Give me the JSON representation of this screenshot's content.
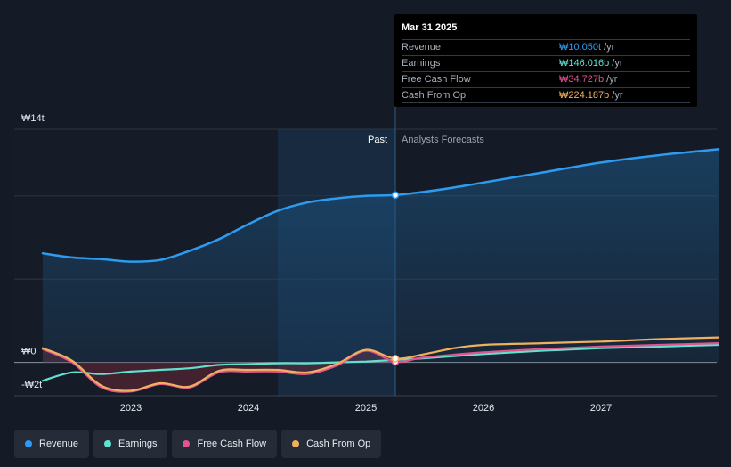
{
  "tooltip": {
    "date": "Mar 31 2025",
    "rows": [
      {
        "name": "Revenue",
        "value": "₩10.050t",
        "unit": "/yr",
        "color": "#2d9cf0"
      },
      {
        "name": "Earnings",
        "value": "₩146.016b",
        "unit": "/yr",
        "color": "#5fe3d0"
      },
      {
        "name": "Free Cash Flow",
        "value": "₩34.727b",
        "unit": "/yr",
        "color": "#e0558e"
      },
      {
        "name": "Cash From Op",
        "value": "₩224.187b",
        "unit": "/yr",
        "color": "#f0b15e"
      }
    ]
  },
  "regions": {
    "past_label": "Past",
    "forecast_label": "Analysts Forecasts"
  },
  "legend": [
    {
      "label": "Revenue",
      "color": "#2d9cf0"
    },
    {
      "label": "Earnings",
      "color": "#5fe3d0"
    },
    {
      "label": "Free Cash Flow",
      "color": "#e0558e"
    },
    {
      "label": "Cash From Op",
      "color": "#f0b15e"
    }
  ],
  "chart_data": {
    "type": "line",
    "title": "",
    "xlabel": "",
    "ylabel": "",
    "y_unit": "₩ trillion",
    "ylim": [
      -2,
      14
    ],
    "xlim": [
      2022.25,
      2028.0
    ],
    "y_ticks": [
      {
        "value": 14,
        "label": "₩14t"
      },
      {
        "value": 0,
        "label": "₩0"
      },
      {
        "value": -2,
        "label": "-₩2t"
      }
    ],
    "x_ticks": [
      {
        "value": 2023,
        "label": "2023"
      },
      {
        "value": 2024,
        "label": "2024"
      },
      {
        "value": 2025,
        "label": "2025"
      },
      {
        "value": 2026,
        "label": "2026"
      },
      {
        "value": 2027,
        "label": "2027"
      }
    ],
    "past_start": 2024.25,
    "forecast_start": 2025.25,
    "highlight_x": 2025.25,
    "series": [
      {
        "name": "Revenue",
        "color": "#2d9cf0",
        "area": true,
        "points": [
          [
            2022.25,
            6.55
          ],
          [
            2022.5,
            6.3
          ],
          [
            2022.75,
            6.2
          ],
          [
            2023.0,
            6.05
          ],
          [
            2023.25,
            6.15
          ],
          [
            2023.5,
            6.7
          ],
          [
            2023.75,
            7.4
          ],
          [
            2024.0,
            8.3
          ],
          [
            2024.25,
            9.1
          ],
          [
            2024.5,
            9.6
          ],
          [
            2024.75,
            9.85
          ],
          [
            2025.0,
            10.0
          ],
          [
            2025.25,
            10.05
          ],
          [
            2025.5,
            10.25
          ],
          [
            2025.75,
            10.5
          ],
          [
            2026.0,
            10.8
          ],
          [
            2026.5,
            11.4
          ],
          [
            2027.0,
            12.0
          ],
          [
            2027.5,
            12.45
          ],
          [
            2028.0,
            12.8
          ]
        ]
      },
      {
        "name": "Earnings",
        "color": "#5fe3d0",
        "points": [
          [
            2022.25,
            -1.1
          ],
          [
            2022.5,
            -0.6
          ],
          [
            2022.75,
            -0.7
          ],
          [
            2023.0,
            -0.55
          ],
          [
            2023.25,
            -0.45
          ],
          [
            2023.5,
            -0.35
          ],
          [
            2023.75,
            -0.15
          ],
          [
            2024.0,
            -0.1
          ],
          [
            2024.25,
            -0.05
          ],
          [
            2024.5,
            -0.05
          ],
          [
            2024.75,
            0.0
          ],
          [
            2025.0,
            0.05
          ],
          [
            2025.25,
            0.146
          ],
          [
            2025.5,
            0.25
          ],
          [
            2026.0,
            0.5
          ],
          [
            2026.5,
            0.7
          ],
          [
            2027.0,
            0.85
          ],
          [
            2027.5,
            0.95
          ],
          [
            2028.0,
            1.05
          ]
        ]
      },
      {
        "name": "Free Cash Flow",
        "color": "#e0558e",
        "points": [
          [
            2022.25,
            0.8
          ],
          [
            2022.5,
            0.0
          ],
          [
            2022.75,
            -1.5
          ],
          [
            2023.0,
            -1.75
          ],
          [
            2023.25,
            -1.3
          ],
          [
            2023.5,
            -1.5
          ],
          [
            2023.75,
            -0.6
          ],
          [
            2024.0,
            -0.55
          ],
          [
            2024.25,
            -0.55
          ],
          [
            2024.5,
            -0.7
          ],
          [
            2024.75,
            -0.2
          ],
          [
            2025.0,
            0.7
          ],
          [
            2025.25,
            0.035
          ],
          [
            2025.5,
            0.3
          ],
          [
            2026.0,
            0.6
          ],
          [
            2026.5,
            0.8
          ],
          [
            2027.0,
            0.95
          ],
          [
            2027.5,
            1.05
          ],
          [
            2028.0,
            1.15
          ]
        ]
      },
      {
        "name": "Cash From Op",
        "color": "#f0b15e",
        "points": [
          [
            2022.25,
            0.85
          ],
          [
            2022.5,
            0.1
          ],
          [
            2022.75,
            -1.4
          ],
          [
            2023.0,
            -1.7
          ],
          [
            2023.25,
            -1.25
          ],
          [
            2023.5,
            -1.45
          ],
          [
            2023.75,
            -0.5
          ],
          [
            2024.0,
            -0.45
          ],
          [
            2024.25,
            -0.45
          ],
          [
            2024.5,
            -0.6
          ],
          [
            2024.75,
            -0.1
          ],
          [
            2025.0,
            0.75
          ],
          [
            2025.25,
            0.224
          ],
          [
            2025.5,
            0.5
          ],
          [
            2025.75,
            0.85
          ],
          [
            2026.0,
            1.05
          ],
          [
            2026.5,
            1.15
          ],
          [
            2027.0,
            1.25
          ],
          [
            2027.5,
            1.4
          ],
          [
            2028.0,
            1.5
          ]
        ]
      }
    ]
  }
}
